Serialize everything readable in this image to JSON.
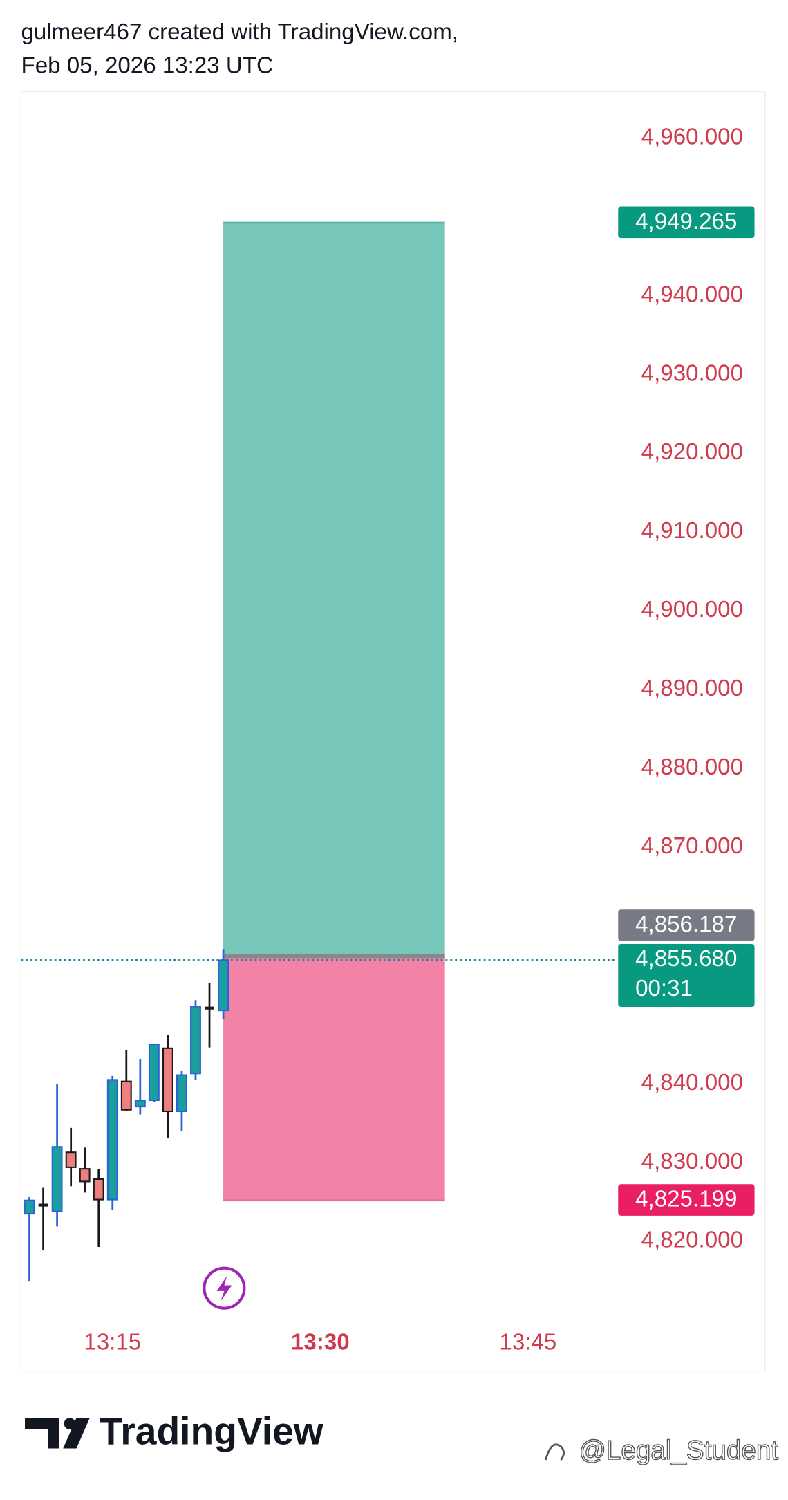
{
  "header": {
    "line1": "gulmeer467 created with TradingView.com,",
    "line2": "Feb 05, 2026 13:23 UTC"
  },
  "footer": {
    "logo": "TradingView",
    "watermark": "@Legal_Student"
  },
  "chart_data": {
    "type": "candlestick",
    "x": [
      "13:09",
      "13:10",
      "13:11",
      "13:12",
      "13:13",
      "13:14",
      "13:15",
      "13:16",
      "13:17",
      "13:18",
      "13:19",
      "13:20",
      "13:21",
      "13:22",
      "13:23"
    ],
    "open": [
      4823.5,
      4824.6,
      4823.8,
      4831.3,
      4829.2,
      4827.9,
      4825.3,
      4840.3,
      4837.1,
      4837.9,
      4844.5,
      4836.5,
      4841.3,
      4849.6,
      4849.3
    ],
    "high": [
      4825.6,
      4826.8,
      4840.0,
      4834.4,
      4831.9,
      4829.2,
      4841.0,
      4844.3,
      4843.1,
      4845.0,
      4846.2,
      4841.6,
      4850.6,
      4852.8,
      4857.1
    ],
    "low": [
      4814.9,
      4818.9,
      4821.9,
      4827.0,
      4826.2,
      4819.3,
      4824.0,
      4836.5,
      4836.1,
      4837.7,
      4833.1,
      4834.0,
      4840.5,
      4844.6,
      4848.2
    ],
    "close": [
      4825.2,
      4824.6,
      4832.0,
      4829.4,
      4827.6,
      4825.3,
      4840.5,
      4836.7,
      4837.9,
      4845.0,
      4836.5,
      4841.1,
      4849.8,
      4849.6,
      4855.68
    ],
    "up_color": "#1a9e9e",
    "up_border": "#2a62d8",
    "down_color": "#ef7f7f",
    "down_border": "#1a1a1a",
    "xlim": [
      "13:08:24",
      "13:51:18"
    ],
    "xticks": [
      "13:15",
      "13:30",
      "13:45"
    ],
    "bold_xticks": [
      "13:30"
    ],
    "ylim": [
      4812.0,
      4965.9
    ],
    "yticks": [
      {
        "value": 4960,
        "label": "4,960.000"
      },
      {
        "value": 4940,
        "label": "4,940.000"
      },
      {
        "value": 4930,
        "label": "4,930.000"
      },
      {
        "value": 4920,
        "label": "4,920.000"
      },
      {
        "value": 4910,
        "label": "4,910.000"
      },
      {
        "value": 4900,
        "label": "4,900.000"
      },
      {
        "value": 4890,
        "label": "4,890.000"
      },
      {
        "value": 4880,
        "label": "4,880.000"
      },
      {
        "value": 4870,
        "label": "4,870.000"
      },
      {
        "value": 4840,
        "label": "4,840.000"
      },
      {
        "value": 4830,
        "label": "4,830.000"
      },
      {
        "value": 4820,
        "label": "4,820.000"
      }
    ],
    "position": {
      "entry": 4856.187,
      "target": 4949.265,
      "stop": 4825.199,
      "start": "13:23",
      "end": "13:39",
      "profit_color": "#76c6b9",
      "loss_color": "#f283a6"
    },
    "price_labels": [
      {
        "value": 4949.265,
        "label": "4,949.265",
        "color": "#089981"
      },
      {
        "value": 4856.187,
        "label": "4,856.187",
        "color": "#787b86"
      },
      {
        "value": 4855.68,
        "label": "4,855.680",
        "sublabel": "00:31",
        "color": "#089981"
      },
      {
        "value": 4825.199,
        "label": "4,825.199",
        "color": "#e91e63"
      }
    ],
    "last_price_line": true,
    "last_price_color": "#1e7fa8"
  }
}
